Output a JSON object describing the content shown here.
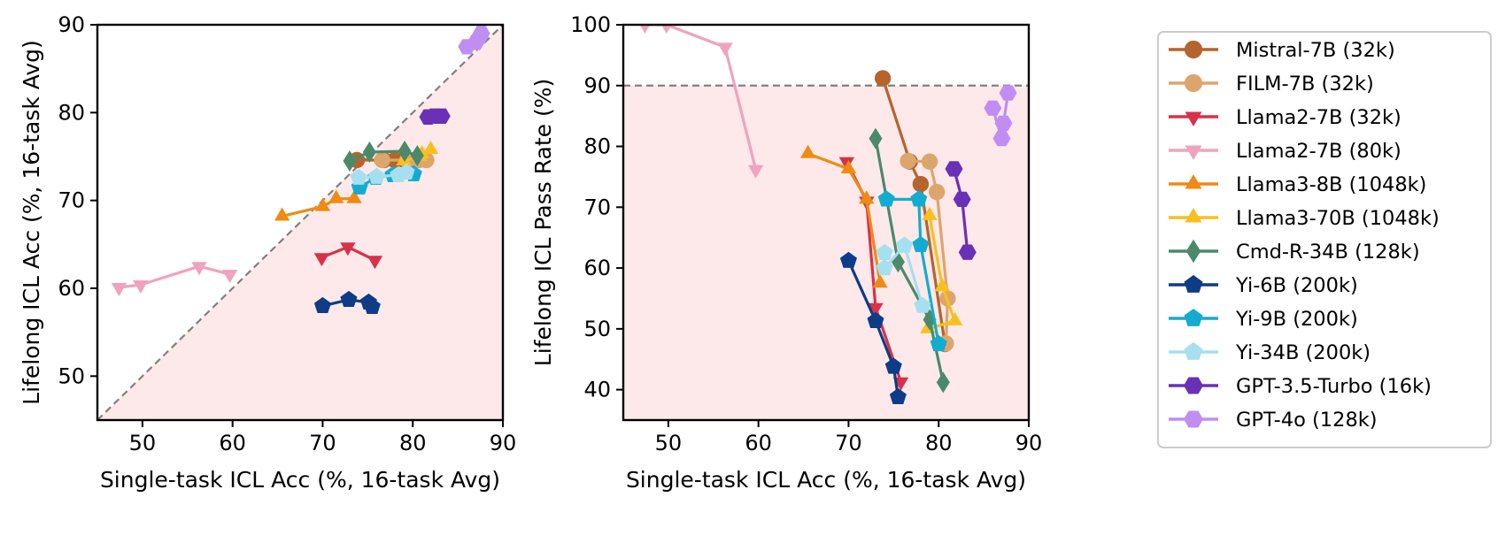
{
  "chart_data": [
    {
      "type": "line",
      "title": "",
      "xlabel": "Single-task ICL Acc (%, 16-task Avg)",
      "ylabel": "Lifelong ICL Acc (%, 16-task Avg)",
      "xlim": [
        45,
        90
      ],
      "ylim": [
        45,
        90
      ],
      "xticks": [
        50,
        60,
        70,
        80,
        90
      ],
      "yticks": [
        50,
        60,
        70,
        80,
        90
      ],
      "reference_line": "diagonal y = x (dashed gray)",
      "shaded_region": "below diagonal (light pink)",
      "series": [
        {
          "name": "Mistral-7B (32k)",
          "points": [
            [
              73.8,
              74.6
            ],
            [
              76.8,
              74.6
            ],
            [
              78.0,
              74.6
            ],
            [
              79.1,
              74.6
            ]
          ]
        },
        {
          "name": "FILM-7B (32k)",
          "points": [
            [
              76.6,
              74.6
            ],
            [
              79.4,
              74.6
            ],
            [
              80.3,
              74.6
            ],
            [
              80.7,
              74.6
            ],
            [
              81.5,
              74.6
            ]
          ]
        },
        {
          "name": "Llama2-7B (32k)",
          "points": [
            [
              69.9,
              63.5
            ],
            [
              72.8,
              64.7
            ],
            [
              75.8,
              63.2
            ]
          ]
        },
        {
          "name": "Llama2-7B (80k)",
          "points": [
            [
              47.4,
              60.1
            ],
            [
              49.8,
              60.4
            ],
            [
              56.3,
              62.5
            ],
            [
              59.7,
              61.6
            ]
          ]
        },
        {
          "name": "Llama3-8B (1048k)",
          "points": [
            [
              65.5,
              68.2
            ],
            [
              70.0,
              69.3
            ],
            [
              71.5,
              70.2
            ],
            [
              73.5,
              70.2
            ]
          ]
        },
        {
          "name": "Llama3-70B (1048k)",
          "points": [
            [
              79.0,
              74.5
            ],
            [
              80.8,
              75.0
            ],
            [
              81.0,
              75.3
            ],
            [
              82.0,
              75.8
            ]
          ]
        },
        {
          "name": "Cmd-R-34B (128k)",
          "points": [
            [
              73.0,
              74.5
            ],
            [
              75.2,
              75.5
            ],
            [
              79.1,
              75.6
            ],
            [
              80.5,
              75.1
            ]
          ]
        },
        {
          "name": "Yi-6B (200k)",
          "points": [
            [
              70.0,
              58.0
            ],
            [
              72.9,
              58.7
            ],
            [
              75.1,
              58.4
            ],
            [
              75.5,
              57.9
            ]
          ]
        },
        {
          "name": "Yi-9B (200k)",
          "points": [
            [
              74.1,
              71.5
            ],
            [
              75.9,
              72.6
            ],
            [
              77.8,
              72.9
            ],
            [
              80.1,
              73.0
            ]
          ]
        },
        {
          "name": "Yi-34B (200k)",
          "points": [
            [
              74.0,
              72.6
            ],
            [
              76.0,
              72.7
            ],
            [
              78.4,
              72.9
            ],
            [
              79.3,
              73.2
            ]
          ]
        },
        {
          "name": "GPT-3.5-Turbo (16k)",
          "points": [
            [
              81.7,
              79.5
            ],
            [
              82.4,
              79.6
            ],
            [
              83.2,
              79.6
            ]
          ]
        },
        {
          "name": "GPT-4o (128k)",
          "points": [
            [
              86.0,
              87.5
            ],
            [
              87.0,
              88.0
            ],
            [
              87.4,
              88.6
            ],
            [
              87.6,
              89.0
            ]
          ]
        }
      ]
    },
    {
      "type": "line",
      "title": "",
      "xlabel": "Single-task ICL Acc (%, 16-task Avg)",
      "ylabel": "Lifelong ICL Pass Rate (%)",
      "xlim": [
        45,
        90
      ],
      "ylim": [
        35,
        100
      ],
      "xticks": [
        50,
        60,
        70,
        80,
        90
      ],
      "yticks": [
        40,
        50,
        60,
        70,
        80,
        90,
        100
      ],
      "reference_line": "horizontal y = 90 (dashed gray)",
      "shaded_region": "below y = 90 (light pink)",
      "series": [
        {
          "name": "Mistral-7B (32k)",
          "points": [
            [
              73.8,
              91.2
            ],
            [
              76.8,
              77.5
            ],
            [
              78.0,
              73.8
            ],
            [
              80.7,
              47.5
            ]
          ]
        },
        {
          "name": "FILM-7B (32k)",
          "points": [
            [
              76.6,
              77.6
            ],
            [
              79.0,
              77.5
            ],
            [
              79.8,
              72.5
            ],
            [
              81.0,
              55.0
            ],
            [
              80.8,
              47.6
            ]
          ]
        },
        {
          "name": "Llama2-7B (32k)",
          "points": [
            [
              69.8,
              77.5
            ],
            [
              72.0,
              71.0
            ],
            [
              73.0,
              53.5
            ],
            [
              75.8,
              41.3
            ]
          ]
        },
        {
          "name": "Llama2-7B (80k)",
          "points": [
            [
              47.4,
              100.0
            ],
            [
              49.8,
              100.0
            ],
            [
              56.3,
              96.3
            ],
            [
              59.7,
              76.2
            ]
          ]
        },
        {
          "name": "Llama3-8B (1048k)",
          "points": [
            [
              65.5,
              78.8
            ],
            [
              70.0,
              76.3
            ],
            [
              72.0,
              71.3
            ],
            [
              73.5,
              57.5
            ]
          ]
        },
        {
          "name": "Llama3-70B (1048k)",
          "points": [
            [
              79.0,
              68.6
            ],
            [
              80.4,
              56.9
            ],
            [
              81.8,
              51.3
            ],
            [
              78.8,
              50.0
            ]
          ]
        },
        {
          "name": "Cmd-R-34B (128k)",
          "points": [
            [
              73.0,
              81.3
            ],
            [
              75.5,
              61.0
            ],
            [
              79.0,
              51.5
            ],
            [
              80.5,
              41.2
            ]
          ]
        },
        {
          "name": "Yi-6B (200k)",
          "points": [
            [
              70.0,
              61.2
            ],
            [
              73.0,
              51.3
            ],
            [
              75.0,
              43.8
            ],
            [
              75.5,
              38.8
            ]
          ]
        },
        {
          "name": "Yi-9B (200k)",
          "points": [
            [
              74.2,
              71.3
            ],
            [
              77.8,
              71.3
            ],
            [
              78.0,
              63.8
            ],
            [
              80.0,
              47.5
            ]
          ]
        },
        {
          "name": "Yi-34B (200k)",
          "points": [
            [
              74.0,
              62.5
            ],
            [
              74.0,
              60.0
            ],
            [
              76.2,
              63.7
            ],
            [
              78.2,
              53.8
            ]
          ]
        },
        {
          "name": "GPT-3.5-Turbo (16k)",
          "points": [
            [
              81.7,
              76.3
            ],
            [
              82.6,
              71.3
            ],
            [
              83.2,
              62.6
            ]
          ]
        },
        {
          "name": "GPT-4o (128k)",
          "points": [
            [
              86.0,
              86.3
            ],
            [
              87.0,
              81.3
            ],
            [
              87.2,
              83.8
            ],
            [
              87.7,
              88.8
            ]
          ]
        }
      ]
    }
  ],
  "legend": {
    "placement": "right",
    "entries": [
      {
        "label": "Mistral-7B (32k)",
        "color": "#b5642d",
        "marker": "circle"
      },
      {
        "label": "FILM-7B (32k)",
        "color": "#dca56c",
        "marker": "circle"
      },
      {
        "label": "Llama2-7B (32k)",
        "color": "#d8314a",
        "marker": "triangle-down"
      },
      {
        "label": "Llama2-7B (80k)",
        "color": "#f0a2bf",
        "marker": "triangle-down"
      },
      {
        "label": "Llama3-8B (1048k)",
        "color": "#ef8a12",
        "marker": "triangle-up"
      },
      {
        "label": "Llama3-70B (1048k)",
        "color": "#f9bf1e",
        "marker": "triangle-up"
      },
      {
        "label": "Cmd-R-34B (128k)",
        "color": "#4a8a6b",
        "marker": "diamond"
      },
      {
        "label": "Yi-6B (200k)",
        "color": "#0e3c87",
        "marker": "pentagon"
      },
      {
        "label": "Yi-9B (200k)",
        "color": "#13acd0",
        "marker": "pentagon"
      },
      {
        "label": "Yi-34B (200k)",
        "color": "#a6dff0",
        "marker": "pentagon"
      },
      {
        "label": "GPT-3.5-Turbo (16k)",
        "color": "#6a30b6",
        "marker": "hexagon"
      },
      {
        "label": "GPT-4o (128k)",
        "color": "#c08ef3",
        "marker": "hexagon"
      }
    ]
  },
  "colors": {
    "shade": "#fde9ea",
    "reference": "#808080",
    "frame": "#000000"
  }
}
